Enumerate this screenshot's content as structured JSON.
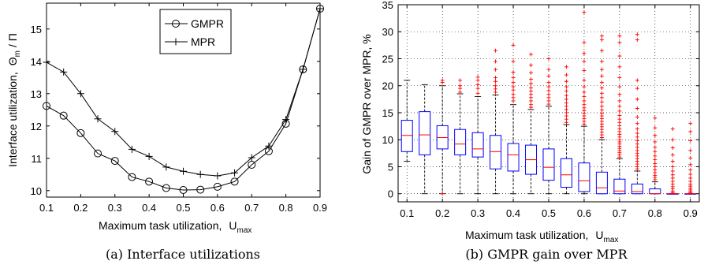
{
  "chart_data": [
    {
      "type": "line",
      "caption": "(a) Interface utilizations",
      "xlabel": "Maximum task utilization,",
      "xlabel_sym": "U",
      "xlabel_sub": "max",
      "ylabel": "Interface utilization,",
      "ylabel_sym": "Θ",
      "ylabel_sub": "m",
      "ylabel_tail": "/ Π",
      "xlim": [
        0.1,
        0.9
      ],
      "ylim": [
        9.8,
        15.8
      ],
      "xticks": [
        "0.1",
        "0.2",
        "0.3",
        "0.4",
        "0.5",
        "0.6",
        "0.7",
        "0.8",
        "0.9"
      ],
      "yticks": [
        "10",
        "11",
        "12",
        "13",
        "14",
        "15"
      ],
      "legend_position": "top-center",
      "x": [
        0.1,
        0.15,
        0.2,
        0.25,
        0.3,
        0.35,
        0.4,
        0.45,
        0.5,
        0.55,
        0.6,
        0.65,
        0.7,
        0.75,
        0.8,
        0.85,
        0.9
      ],
      "series": [
        {
          "name": "GMPR",
          "marker": "circle",
          "values": [
            12.62,
            12.32,
            11.78,
            11.15,
            10.92,
            10.42,
            10.28,
            10.08,
            10.02,
            10.03,
            10.12,
            10.28,
            10.8,
            11.22,
            12.07,
            13.75,
            15.63
          ]
        },
        {
          "name": "MPR",
          "marker": "plus",
          "values": [
            13.97,
            13.67,
            13.0,
            12.22,
            11.83,
            11.28,
            11.06,
            10.73,
            10.6,
            10.5,
            10.46,
            10.55,
            11.02,
            11.38,
            12.2,
            13.75,
            15.63
          ]
        }
      ]
    },
    {
      "type": "box",
      "caption": "(b) GMPR gain over MPR",
      "xlabel": "Maximum task utilization,",
      "xlabel_sym": "U",
      "xlabel_sub": "max",
      "ylabel": "Gain of GMPR over MPR,  %",
      "xlim": [
        0.075,
        0.925
      ],
      "ylim": [
        -1.5,
        35
      ],
      "xticks": [
        "0.1",
        "0.2",
        "0.3",
        "0.4",
        "0.5",
        "0.6",
        "0.7",
        "0.8",
        "0.9"
      ],
      "yticks": [
        "0",
        "5",
        "10",
        "15",
        "20",
        "25",
        "30",
        "35"
      ],
      "grid": true,
      "x": [
        0.1,
        0.15,
        0.2,
        0.25,
        0.3,
        0.35,
        0.4,
        0.45,
        0.5,
        0.55,
        0.6,
        0.65,
        0.7,
        0.75,
        0.8,
        0.85,
        0.9
      ],
      "boxes": [
        {
          "whislo": 6.0,
          "q1": 7.8,
          "med": 10.8,
          "q3": 13.6,
          "whishi": 21.0,
          "fliers": []
        },
        {
          "whislo": 0.0,
          "q1": 7.2,
          "med": 10.9,
          "q3": 15.2,
          "whishi": 20.2,
          "fliers": []
        },
        {
          "whislo": 0.0,
          "q1": 8.3,
          "med": 10.4,
          "q3": 12.6,
          "whishi": 20.0,
          "fliers": [
            0.0,
            20.6,
            21.0
          ]
        },
        {
          "whislo": 0.0,
          "q1": 7.2,
          "med": 9.2,
          "q3": 11.9,
          "whishi": 18.5,
          "fliers": [
            18.8,
            19.5,
            20.0,
            21.0
          ]
        },
        {
          "whislo": 0.0,
          "q1": 6.8,
          "med": 8.3,
          "q3": 11.3,
          "whishi": 18.0,
          "fliers": [
            18.6,
            19.5,
            20.2,
            21.0,
            21.6
          ]
        },
        {
          "whislo": 0.0,
          "q1": 4.6,
          "med": 7.8,
          "q3": 10.8,
          "whishi": 18.3,
          "fliers": [
            18.8,
            19.4,
            20.0,
            20.8,
            21.5,
            23.0,
            24.5,
            26.5
          ]
        },
        {
          "whislo": 0.0,
          "q1": 4.2,
          "med": 7.2,
          "q3": 9.3,
          "whishi": 16.5,
          "fliers": [
            17.2,
            17.8,
            18.4,
            19.2,
            19.8,
            20.6,
            21.5,
            22.5,
            24.5,
            27.5
          ]
        },
        {
          "whislo": 0.0,
          "q1": 3.6,
          "med": 6.3,
          "q3": 9.0,
          "whishi": 15.6,
          "fliers": [
            16.0,
            16.5,
            17.2,
            17.8,
            18.4,
            19.0,
            19.6,
            20.4,
            21.2,
            22.4,
            23.8,
            25.8
          ]
        },
        {
          "whislo": 0.0,
          "q1": 2.5,
          "med": 4.9,
          "q3": 8.3,
          "whishi": 16.2,
          "fliers": [
            16.6,
            17.2,
            17.8,
            18.4,
            19.1,
            19.8,
            20.6,
            21.8,
            23.0,
            25.0
          ]
        },
        {
          "whislo": 0.0,
          "q1": 1.2,
          "med": 3.5,
          "q3": 6.5,
          "whishi": 12.8,
          "fliers": [
            13.2,
            13.8,
            14.4,
            15.0,
            15.6,
            16.2,
            16.8,
            17.5,
            18.2,
            19.0,
            19.8,
            20.8,
            22.0,
            23.5
          ]
        },
        {
          "whislo": 0.0,
          "q1": 0.4,
          "med": 2.4,
          "q3": 5.7,
          "whishi": 12.5,
          "fliers": [
            12.9,
            13.4,
            13.9,
            14.4,
            14.9,
            15.4,
            15.9,
            16.5,
            17.2,
            18.0,
            18.8,
            19.8,
            21.0,
            22.8,
            24.5,
            26.0,
            28.0,
            33.6
          ]
        },
        {
          "whislo": 0.0,
          "q1": 0.0,
          "med": 1.1,
          "q3": 4.0,
          "whishi": 10.0,
          "fliers": [
            10.4,
            10.9,
            11.4,
            11.9,
            12.4,
            12.9,
            13.4,
            13.9,
            14.4,
            14.9,
            15.5,
            16.2,
            17.0,
            17.8,
            18.6,
            19.6,
            20.6,
            21.8,
            23.0,
            24.5,
            26.5,
            28.5,
            29.2
          ]
        },
        {
          "whislo": 0.0,
          "q1": 0.0,
          "med": 0.5,
          "q3": 2.7,
          "whishi": 6.5,
          "fliers": [
            6.8,
            7.2,
            7.6,
            8.0,
            8.4,
            8.8,
            9.2,
            9.6,
            10.0,
            10.5,
            11.0,
            11.5,
            12.0,
            12.6,
            13.2,
            13.8,
            14.5,
            15.3,
            16.2,
            17.2,
            18.4,
            19.8,
            21.5,
            23.5,
            25.5,
            28.0,
            29.2
          ]
        },
        {
          "whislo": 0.0,
          "q1": 0.0,
          "med": 0.4,
          "q3": 1.8,
          "whishi": 4.2,
          "fliers": [
            4.6,
            5.0,
            5.5,
            6.0,
            6.5,
            7.0,
            7.5,
            8.0,
            8.6,
            9.2,
            9.8,
            10.5,
            11.2,
            12.0,
            13.0,
            14.2,
            15.8,
            17.5,
            19.5,
            21.0,
            28.5,
            29.5
          ]
        },
        {
          "whislo": 0.0,
          "q1": 0.0,
          "med": 0.0,
          "q3": 0.9,
          "whishi": 2.2,
          "fliers": [
            2.6,
            3.0,
            3.4,
            3.9,
            4.4,
            5.0,
            5.6,
            6.3,
            7.0,
            7.8,
            8.6,
            9.6,
            10.8,
            12.2,
            14.0
          ]
        },
        {
          "whislo": 0.0,
          "q1": 0.0,
          "med": 0.0,
          "q3": 0.0,
          "whishi": 0.0,
          "fliers": [
            0.2,
            0.5,
            0.9,
            1.3,
            1.8,
            2.3,
            2.9,
            3.5,
            4.2,
            5.0,
            6.0,
            7.2,
            8.5,
            10.0,
            12.0
          ]
        },
        {
          "whislo": 0.0,
          "q1": 0.0,
          "med": 0.0,
          "q3": 0.0,
          "whishi": 0.0,
          "fliers": [
            0.2,
            0.4,
            0.7,
            1.0,
            1.4,
            1.8,
            2.3,
            2.9,
            3.6,
            4.4,
            5.4,
            6.6,
            8.0,
            9.8,
            11.5,
            13.0
          ]
        }
      ]
    }
  ]
}
